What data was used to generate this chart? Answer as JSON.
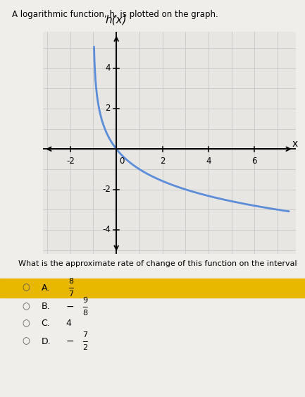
{
  "title_text": "A logarithmic function, h, is plotted on the graph.",
  "graph_title": "h(x)",
  "curve_color": "#5b8dd9",
  "curve_linewidth": 2.0,
  "xlim": [
    -3.2,
    7.8
  ],
  "ylim": [
    -5.2,
    5.8
  ],
  "xticks": [
    -2,
    0,
    2,
    4,
    6
  ],
  "yticks": [
    -4,
    -2,
    2,
    4
  ],
  "grid_color": "#c8c8c8",
  "background_color": "#f0eeea",
  "graph_bg": "#e8e6e2",
  "question_text": "What is the approximate rate of change of this function on the interval",
  "choices": [
    {
      "label": "A.",
      "num": 8,
      "den": 7,
      "highlighted": true
    },
    {
      "label": "B.",
      "num": -9,
      "den": 8,
      "highlighted": false
    },
    {
      "label": "C.",
      "value": "4",
      "highlighted": false
    },
    {
      "label": "D.",
      "num": -7,
      "den": 2,
      "highlighted": false
    }
  ]
}
